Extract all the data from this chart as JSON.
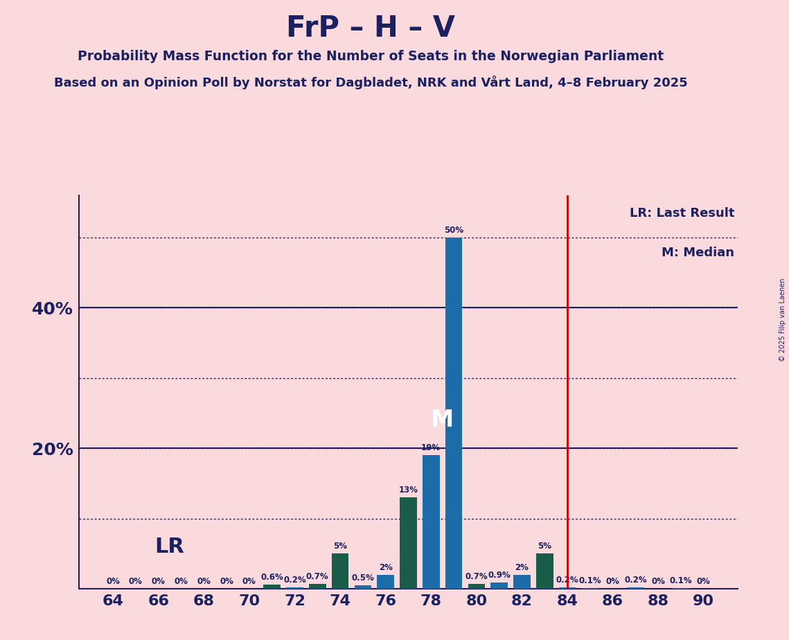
{
  "title": "FrP – H – V",
  "subtitle1": "Probability Mass Function for the Number of Seats in the Norwegian Parliament",
  "subtitle2": "Based on an Opinion Poll by Norstat for Dagbladet, NRK and Vårt Land, 4–8 February 2025",
  "copyright": "© 2025 Filip van Laenen",
  "ylim_max": 56,
  "median_seat": 78,
  "lr_seat": 84,
  "background_color": "#fadadd",
  "bar_color_blue": "#1b6ca8",
  "bar_color_green": "#1a5c4a",
  "axis_color": "#1a2060",
  "red_line_color": "#cc0000",
  "legend_lr": "LR: Last Result",
  "legend_m": "M: Median",
  "seats": [
    64,
    65,
    66,
    67,
    68,
    69,
    70,
    71,
    72,
    73,
    74,
    75,
    76,
    77,
    78,
    79,
    80,
    81,
    82,
    83,
    84,
    85,
    86,
    87,
    88,
    89,
    90
  ],
  "blue_values": [
    0,
    0,
    0,
    0,
    0,
    0,
    0,
    0,
    0.2,
    0,
    0,
    0.5,
    2.0,
    0,
    19.0,
    50.0,
    0,
    0.9,
    2.0,
    0,
    0.2,
    0.1,
    0,
    0.2,
    0,
    0.1,
    0
  ],
  "green_values": [
    0,
    0,
    0,
    0,
    0,
    0,
    0,
    0.6,
    0,
    0.7,
    5.0,
    0,
    0,
    13.0,
    0,
    0,
    0.7,
    0,
    0,
    5.0,
    0,
    0,
    0,
    0,
    0,
    0,
    0
  ],
  "bar_labels_blue": [
    "0%",
    "0%",
    "0%",
    "0%",
    "0%",
    "0%",
    "0%",
    "",
    "0.2%",
    "",
    "",
    "0.5%",
    "2%",
    "",
    "19%",
    "50%",
    "",
    "0.9%",
    "2%",
    "",
    "0.2%",
    "0.1%",
    "0%",
    "0.2%",
    "0%",
    "0.1%",
    "0%"
  ],
  "bar_labels_green": [
    "",
    "",
    "",
    "",
    "",
    "",
    "",
    "0.6%",
    "",
    "0.7%",
    "5%",
    "",
    "",
    "13%",
    "",
    "",
    "0.7%",
    "",
    "",
    "5%",
    "",
    "",
    "",
    "",
    "",
    "",
    ""
  ],
  "dotted_lines": [
    10,
    20,
    30,
    40,
    50
  ],
  "solid_lines": [
    20,
    40
  ],
  "xtick_seats": [
    64,
    66,
    68,
    70,
    72,
    74,
    76,
    78,
    80,
    82,
    84,
    86,
    88,
    90
  ],
  "ytick_positions": [
    20,
    40
  ],
  "ytick_labels": [
    "20%",
    "40%"
  ]
}
